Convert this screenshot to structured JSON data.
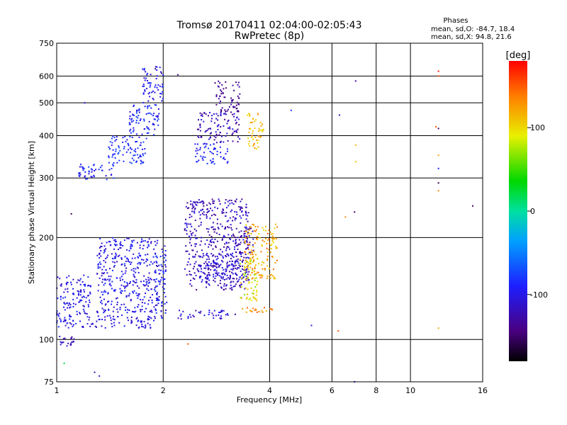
{
  "chart_data": {
    "type": "scatter",
    "title": "Tromsø 20170411 02:04:00-02:05:43",
    "subtitle": "RwPretec (8p)",
    "xlabel": "Frequency [MHz]",
    "ylabel": "Stationary phase Virtual Height [km]",
    "x_scale": "log",
    "y_scale": "log",
    "xlim": [
      1,
      16
    ],
    "ylim": [
      75,
      750
    ],
    "x_ticks": [
      1,
      2,
      4,
      6,
      8,
      10,
      16
    ],
    "y_ticks": [
      75,
      100,
      200,
      300,
      400,
      500,
      600,
      750
    ],
    "grid": true,
    "stats": {
      "heading": "Phases",
      "line_o": "mean, sd,O: -84.7, 18.4",
      "line_x": "mean, sd,X:  94.8, 21.6"
    },
    "colorbar": {
      "label": "[deg]",
      "range": [
        -180,
        180
      ],
      "ticks": [
        100,
        0,
        -100
      ],
      "colormap": "rainbow"
    },
    "color_value": "phase [deg]",
    "clusters": [
      {
        "f": [
          1.0,
          1.12
        ],
        "h": [
          95,
          103
        ],
        "phase": [
          -135,
          -100
        ]
      },
      {
        "f": [
          1.0,
          1.25
        ],
        "h": [
          108,
          155
        ],
        "phase": [
          -120,
          -80
        ]
      },
      {
        "f": [
          1.25,
          1.9
        ],
        "h": [
          108,
          118
        ],
        "phase": [
          -125,
          -90
        ]
      },
      {
        "f": [
          1.3,
          1.95
        ],
        "h": [
          120,
          200
        ],
        "phase": [
          -120,
          -80
        ]
      },
      {
        "f": [
          1.9,
          2.05
        ],
        "h": [
          115,
          190
        ],
        "phase": [
          -120,
          -70
        ]
      },
      {
        "f": [
          2.2,
          3.2
        ],
        "h": [
          115,
          122
        ],
        "phase": [
          -130,
          -90
        ]
      },
      {
        "f": [
          2.3,
          3.5
        ],
        "h": [
          140,
          260
        ],
        "phase": [
          -140,
          -100
        ]
      },
      {
        "f": [
          2.5,
          3.5
        ],
        "h": [
          150,
          180
        ],
        "phase": [
          -125,
          -90
        ]
      },
      {
        "f": [
          3.2,
          3.6
        ],
        "h": [
          180,
          215
        ],
        "phase": [
          -140,
          -110
        ]
      },
      {
        "f": [
          3.35,
          4.1
        ],
        "h": [
          120,
          125
        ],
        "phase": [
          110,
          150
        ]
      },
      {
        "f": [
          3.4,
          4.2
        ],
        "h": [
          150,
          220
        ],
        "phase": [
          95,
          150
        ]
      },
      {
        "f": [
          3.3,
          3.7
        ],
        "h": [
          130,
          175
        ],
        "phase": [
          60,
          120
        ]
      },
      {
        "f": [
          1.15,
          1.45
        ],
        "h": [
          295,
          330
        ],
        "phase": [
          -115,
          -70
        ]
      },
      {
        "f": [
          1.4,
          1.8
        ],
        "h": [
          330,
          400
        ],
        "phase": [
          -105,
          -70
        ]
      },
      {
        "f": [
          1.6,
          1.95
        ],
        "h": [
          400,
          500
        ],
        "phase": [
          -110,
          -70
        ]
      },
      {
        "f": [
          1.75,
          2.0
        ],
        "h": [
          500,
          640
        ],
        "phase": [
          -115,
          -80
        ]
      },
      {
        "f": [
          2.45,
          3.05
        ],
        "h": [
          330,
          380
        ],
        "phase": [
          -105,
          -75
        ]
      },
      {
        "f": [
          2.5,
          3.3
        ],
        "h": [
          380,
          470
        ],
        "phase": [
          -145,
          -100
        ]
      },
      {
        "f": [
          2.8,
          3.3
        ],
        "h": [
          470,
          580
        ],
        "phase": [
          -150,
          -120
        ]
      },
      {
        "f": [
          3.45,
          3.85
        ],
        "h": [
          365,
          470
        ],
        "phase": [
          95,
          130
        ]
      }
    ],
    "outliers": [
      {
        "f": 1.05,
        "h": 85,
        "phase": 20
      },
      {
        "f": 1.28,
        "h": 80,
        "phase": -125
      },
      {
        "f": 1.32,
        "h": 78,
        "phase": -110
      },
      {
        "f": 2.35,
        "h": 97,
        "phase": 150
      },
      {
        "f": 5.25,
        "h": 110,
        "phase": -110
      },
      {
        "f": 6.25,
        "h": 106,
        "phase": 150
      },
      {
        "f": 6.95,
        "h": 75,
        "phase": -90
      },
      {
        "f": 6.95,
        "h": 238,
        "phase": -150
      },
      {
        "f": 6.55,
        "h": 230,
        "phase": 130
      },
      {
        "f": 7.0,
        "h": 335,
        "phase": 110
      },
      {
        "f": 7.0,
        "h": 375,
        "phase": 110
      },
      {
        "f": 7.0,
        "h": 580,
        "phase": -130
      },
      {
        "f": 6.3,
        "h": 460,
        "phase": -120
      },
      {
        "f": 4.6,
        "h": 475,
        "phase": -80
      },
      {
        "f": 12.0,
        "h": 620,
        "phase": 170
      },
      {
        "f": 12.0,
        "h": 600,
        "phase": 150
      },
      {
        "f": 12.0,
        "h": 420,
        "phase": -150
      },
      {
        "f": 11.8,
        "h": 425,
        "phase": 150
      },
      {
        "f": 12.0,
        "h": 350,
        "phase": 120
      },
      {
        "f": 12.0,
        "h": 320,
        "phase": -90
      },
      {
        "f": 12.0,
        "h": 290,
        "phase": -160
      },
      {
        "f": 12.0,
        "h": 275,
        "phase": 130
      },
      {
        "f": 12.0,
        "h": 108,
        "phase": 120
      },
      {
        "f": 15.0,
        "h": 248,
        "phase": -150
      },
      {
        "f": 2.2,
        "h": 605,
        "phase": -140
      },
      {
        "f": 1.9,
        "h": 630,
        "phase": -140
      },
      {
        "f": 1.2,
        "h": 500,
        "phase": -110
      },
      {
        "f": 1.1,
        "h": 235,
        "phase": -150
      }
    ]
  }
}
